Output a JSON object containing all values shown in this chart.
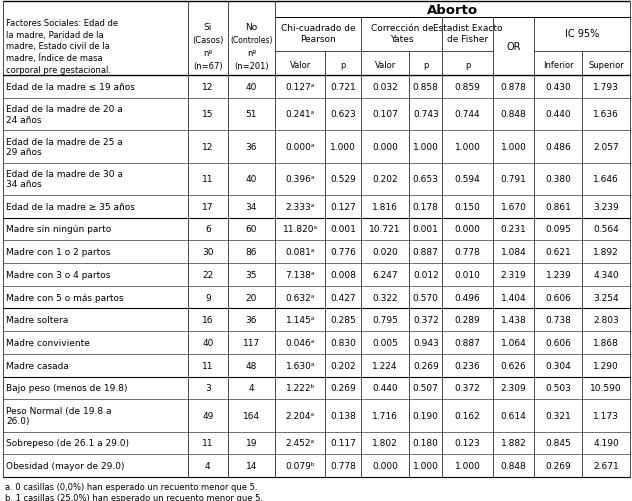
{
  "title": "Aborto",
  "factor_header": "Factores Sociales: Edad de\nla madre, Paridad de la\nmadre, Estado civil de la\nmadre, Índice de masa\ncorporal pre gestacional.",
  "rows": [
    [
      "Edad de la madre ≤ 19 años",
      "12",
      "40",
      "0.127ᵃ",
      "0.721",
      "0.032",
      "0.858",
      "0.859",
      "0.878",
      "0.430",
      "1.793"
    ],
    [
      "Edad de la madre de 20 a\n24 años",
      "15",
      "51",
      "0.241ᵃ",
      "0.623",
      "0.107",
      "0.743",
      "0.744",
      "0.848",
      "0.440",
      "1.636"
    ],
    [
      "Edad de la madre de 25 a\n29 años",
      "12",
      "36",
      "0.000ᵃ",
      "1.000",
      "0.000",
      "1.000",
      "1.000",
      "1.000",
      "0.486",
      "2.057"
    ],
    [
      "Edad de la madre de 30 a\n34 años",
      "11",
      "40",
      "0.396ᵃ",
      "0.529",
      "0.202",
      "0.653",
      "0.594",
      "0.791",
      "0.380",
      "1.646"
    ],
    [
      "Edad de la madre ≥ 35 años",
      "17",
      "34",
      "2.333ᵃ",
      "0.127",
      "1.816",
      "0.178",
      "0.150",
      "1.670",
      "0.861",
      "3.239"
    ],
    [
      "Madre sin ningún parto",
      "6",
      "60",
      "11.820ᵃ",
      "0.001",
      "10.721",
      "0.001",
      "0.000",
      "0.231",
      "0.095",
      "0.564"
    ],
    [
      "Madre con 1 o 2 partos",
      "30",
      "86",
      "0.081ᵃ",
      "0.776",
      "0.020",
      "0.887",
      "0.778",
      "1.084",
      "0.621",
      "1.892"
    ],
    [
      "Madre con 3 o 4 partos",
      "22",
      "35",
      "7.138ᵃ",
      "0.008",
      "6.247",
      "0.012",
      "0.010",
      "2.319",
      "1.239",
      "4.340"
    ],
    [
      "Madre con 5 o más partos",
      "9",
      "20",
      "0.632ᵃ",
      "0.427",
      "0.322",
      "0.570",
      "0.496",
      "1.404",
      "0.606",
      "3.254"
    ],
    [
      "Madre soltera",
      "16",
      "36",
      "1.145ᵃ",
      "0.285",
      "0.795",
      "0.372",
      "0.289",
      "1.438",
      "0.738",
      "2.803"
    ],
    [
      "Madre conviviente",
      "40",
      "117",
      "0.046ᵃ",
      "0.830",
      "0.005",
      "0.943",
      "0.887",
      "1.064",
      "0.606",
      "1.868"
    ],
    [
      "Madre casada",
      "11",
      "48",
      "1.630ᵃ",
      "0.202",
      "1.224",
      "0.269",
      "0.236",
      "0.626",
      "0.304",
      "1.290"
    ],
    [
      "Bajo peso (menos de 19.8)",
      "3",
      "4",
      "1.222ᵇ",
      "0.269",
      "0.440",
      "0.507",
      "0.372",
      "2.309",
      "0.503",
      "10.590"
    ],
    [
      "Peso Normal (de 19.8 a\n26.0)",
      "49",
      "164",
      "2.204ᵃ",
      "0.138",
      "1.716",
      "0.190",
      "0.162",
      "0.614",
      "0.321",
      "1.173"
    ],
    [
      "Sobrepeso (de 26.1 a 29.0)",
      "11",
      "19",
      "2.452ᵃ",
      "0.117",
      "1.802",
      "0.180",
      "0.123",
      "1.882",
      "0.845",
      "4.190"
    ],
    [
      "Obesidad (mayor de 29.0)",
      "4",
      "14",
      "0.079ᵇ",
      "0.778",
      "0.000",
      "1.000",
      "1.000",
      "0.848",
      "0.269",
      "2.671"
    ]
  ],
  "footnotes": [
    "a. 0 casillas (0,0%) han esperado un recuento menor que 5.",
    "b. 1 casillas (25,0%) han esperado un recuento menor que 5."
  ],
  "group_separators_after": [
    4,
    8,
    11
  ],
  "col_widths_rel": [
    155,
    33,
    40,
    42,
    30,
    40,
    28,
    42,
    35,
    40,
    40
  ],
  "fig_w": 6.32,
  "fig_h": 5.02,
  "dpi": 100,
  "bg_color": "#f0ebe0",
  "white": "#ffffff",
  "fontsize_data": 6.5,
  "fontsize_header": 6.5,
  "fontsize_title": 9.5
}
